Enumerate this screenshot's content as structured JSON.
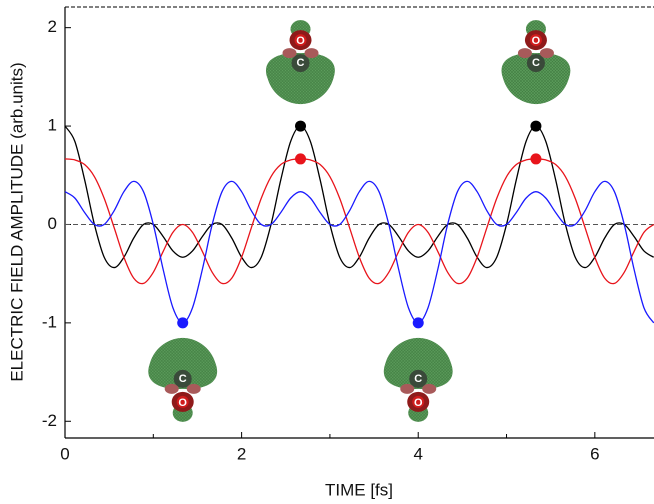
{
  "chart_data": {
    "type": "line",
    "x_label": "TIME [fs]",
    "y_label": "ELECTRIC FIELD AMPLITUDE (arb.units)",
    "x": [
      0,
      0.111,
      0.222,
      0.333,
      0.444,
      0.556,
      0.667,
      0.778,
      0.889,
      1,
      1.111,
      1.222,
      1.333,
      1.444,
      1.556,
      1.667,
      1.778,
      1.889,
      2,
      2.111,
      2.222,
      2.333,
      2.444,
      2.556,
      2.667,
      2.778,
      2.889,
      3,
      3.111,
      3.222,
      3.333,
      3.444,
      3.556,
      3.667,
      3.778,
      3.889,
      4,
      4.111,
      4.222,
      4.333,
      4.444,
      4.556,
      4.667,
      4.778,
      4.889,
      5,
      5.111,
      5.222,
      5.333,
      5.444,
      5.556,
      5.667,
      5.778,
      5.889,
      6,
      6.111,
      6.222,
      6.333,
      6.444,
      6.556,
      6.667
    ],
    "series": [
      {
        "color": "#000000",
        "marked_points": [
          24,
          48
        ],
        "values": [
          1,
          0.846,
          0.455,
          0,
          -0.333,
          -0.438,
          -0.333,
          -0.139,
          0,
          0,
          -0.122,
          -0.269,
          -0.333,
          -0.269,
          -0.122,
          0,
          0,
          -0.139,
          -0.333,
          -0.438,
          -0.333,
          0,
          0.455,
          0.846,
          1,
          0.846,
          0.455,
          0,
          -0.333,
          -0.438,
          -0.333,
          -0.139,
          0,
          0,
          -0.122,
          -0.269,
          -0.333,
          -0.269,
          -0.122,
          0,
          0,
          -0.139,
          -0.333,
          -0.438,
          -0.333,
          0,
          0.455,
          0.846,
          1,
          0.846,
          0.455,
          0,
          -0.333,
          -0.438,
          -0.333,
          -0.139,
          0,
          0,
          -0.122,
          -0.269,
          -0.333
        ]
      },
      {
        "color": "#e8141b",
        "marked_points": [
          24,
          48
        ],
        "values": [
          0.666,
          0.656,
          0.609,
          0.486,
          0.265,
          -0.031,
          -0.333,
          -0.545,
          -0.599,
          -0.486,
          -0.275,
          -0.08,
          0,
          -0.08,
          -0.275,
          -0.486,
          -0.599,
          -0.545,
          -0.333,
          -0.031,
          0.265,
          0.486,
          0.609,
          0.656,
          0.666,
          0.656,
          0.609,
          0.486,
          0.265,
          -0.031,
          -0.333,
          -0.545,
          -0.599,
          -0.486,
          -0.275,
          -0.08,
          0,
          -0.08,
          -0.275,
          -0.486,
          -0.599,
          -0.545,
          -0.333,
          -0.031,
          0.265,
          0.486,
          0.609,
          0.656,
          0.666,
          0.656,
          0.609,
          0.486,
          0.265,
          -0.031,
          -0.333,
          -0.545,
          -0.599,
          -0.486,
          -0.275,
          -0.08,
          0
        ]
      },
      {
        "color": "#1a1aff",
        "marked_points": [
          12,
          36
        ],
        "values": [
          0.333,
          0.269,
          0.122,
          0,
          0,
          0.139,
          0.333,
          0.438,
          0.333,
          0,
          -0.455,
          -0.846,
          -1,
          -0.846,
          -0.455,
          0,
          0.333,
          0.438,
          0.333,
          0.139,
          0,
          0,
          0.122,
          0.269,
          0.333,
          0.269,
          0.122,
          0,
          0,
          0.139,
          0.333,
          0.438,
          0.333,
          0,
          -0.455,
          -0.846,
          -1,
          -0.846,
          -0.455,
          0,
          0.333,
          0.438,
          0.333,
          0.139,
          0,
          0,
          0.122,
          0.269,
          0.333,
          0.269,
          0.122,
          0,
          0,
          0.139,
          0.333,
          0.438,
          0.333,
          0,
          -0.455,
          -0.846,
          -1
        ]
      }
    ],
    "xlim": [
      0,
      6.67
    ],
    "xticks": [
      0,
      2,
      4,
      6
    ],
    "xminor": [
      1,
      3,
      5
    ],
    "ylim": [
      -2.17,
      2.21
    ],
    "yticks": [
      -2,
      -1,
      0,
      1,
      2
    ],
    "zero_line": true,
    "atoms": {
      "carbon": "C",
      "oxygen": "O"
    }
  }
}
